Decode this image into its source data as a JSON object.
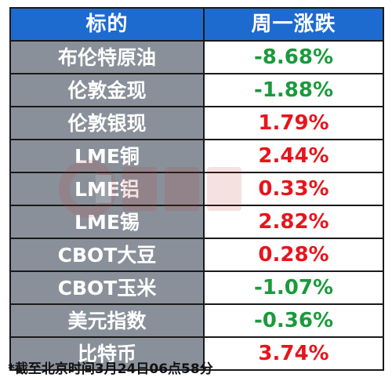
{
  "header": {
    "col_asset": "标的",
    "col_change": "周一涨跌"
  },
  "rows": [
    {
      "name": "布伦特原油",
      "change": "-8.68%",
      "color": "#1a9a3c"
    },
    {
      "name": "伦敦金现",
      "change": "-1.88%",
      "color": "#1a9a3c"
    },
    {
      "name": "伦敦银现",
      "change": "1.79%",
      "color": "#e8141b"
    },
    {
      "name": "LME铜",
      "change": "2.44%",
      "color": "#e8141b"
    },
    {
      "name": "LME铝",
      "change": "0.33%",
      "color": "#e8141b"
    },
    {
      "name": "LME锡",
      "change": "2.82%",
      "color": "#e8141b"
    },
    {
      "name": "CBOT大豆",
      "change": "0.28%",
      "color": "#e8141b"
    },
    {
      "name": "CBOT玉米",
      "change": "-1.07%",
      "color": "#1a9a3c"
    },
    {
      "name": "美元指数",
      "change": "-0.36%",
      "color": "#1a9a3c"
    },
    {
      "name": "比特币",
      "change": "3.74%",
      "color": "#e8141b"
    }
  ],
  "footnote": "*截至北京时间3月24日06点58分",
  "colors": {
    "header_bg": "#1e6bd0",
    "name_bg": "#8a9099",
    "up": "#e8141b",
    "down": "#1a9a3c"
  }
}
